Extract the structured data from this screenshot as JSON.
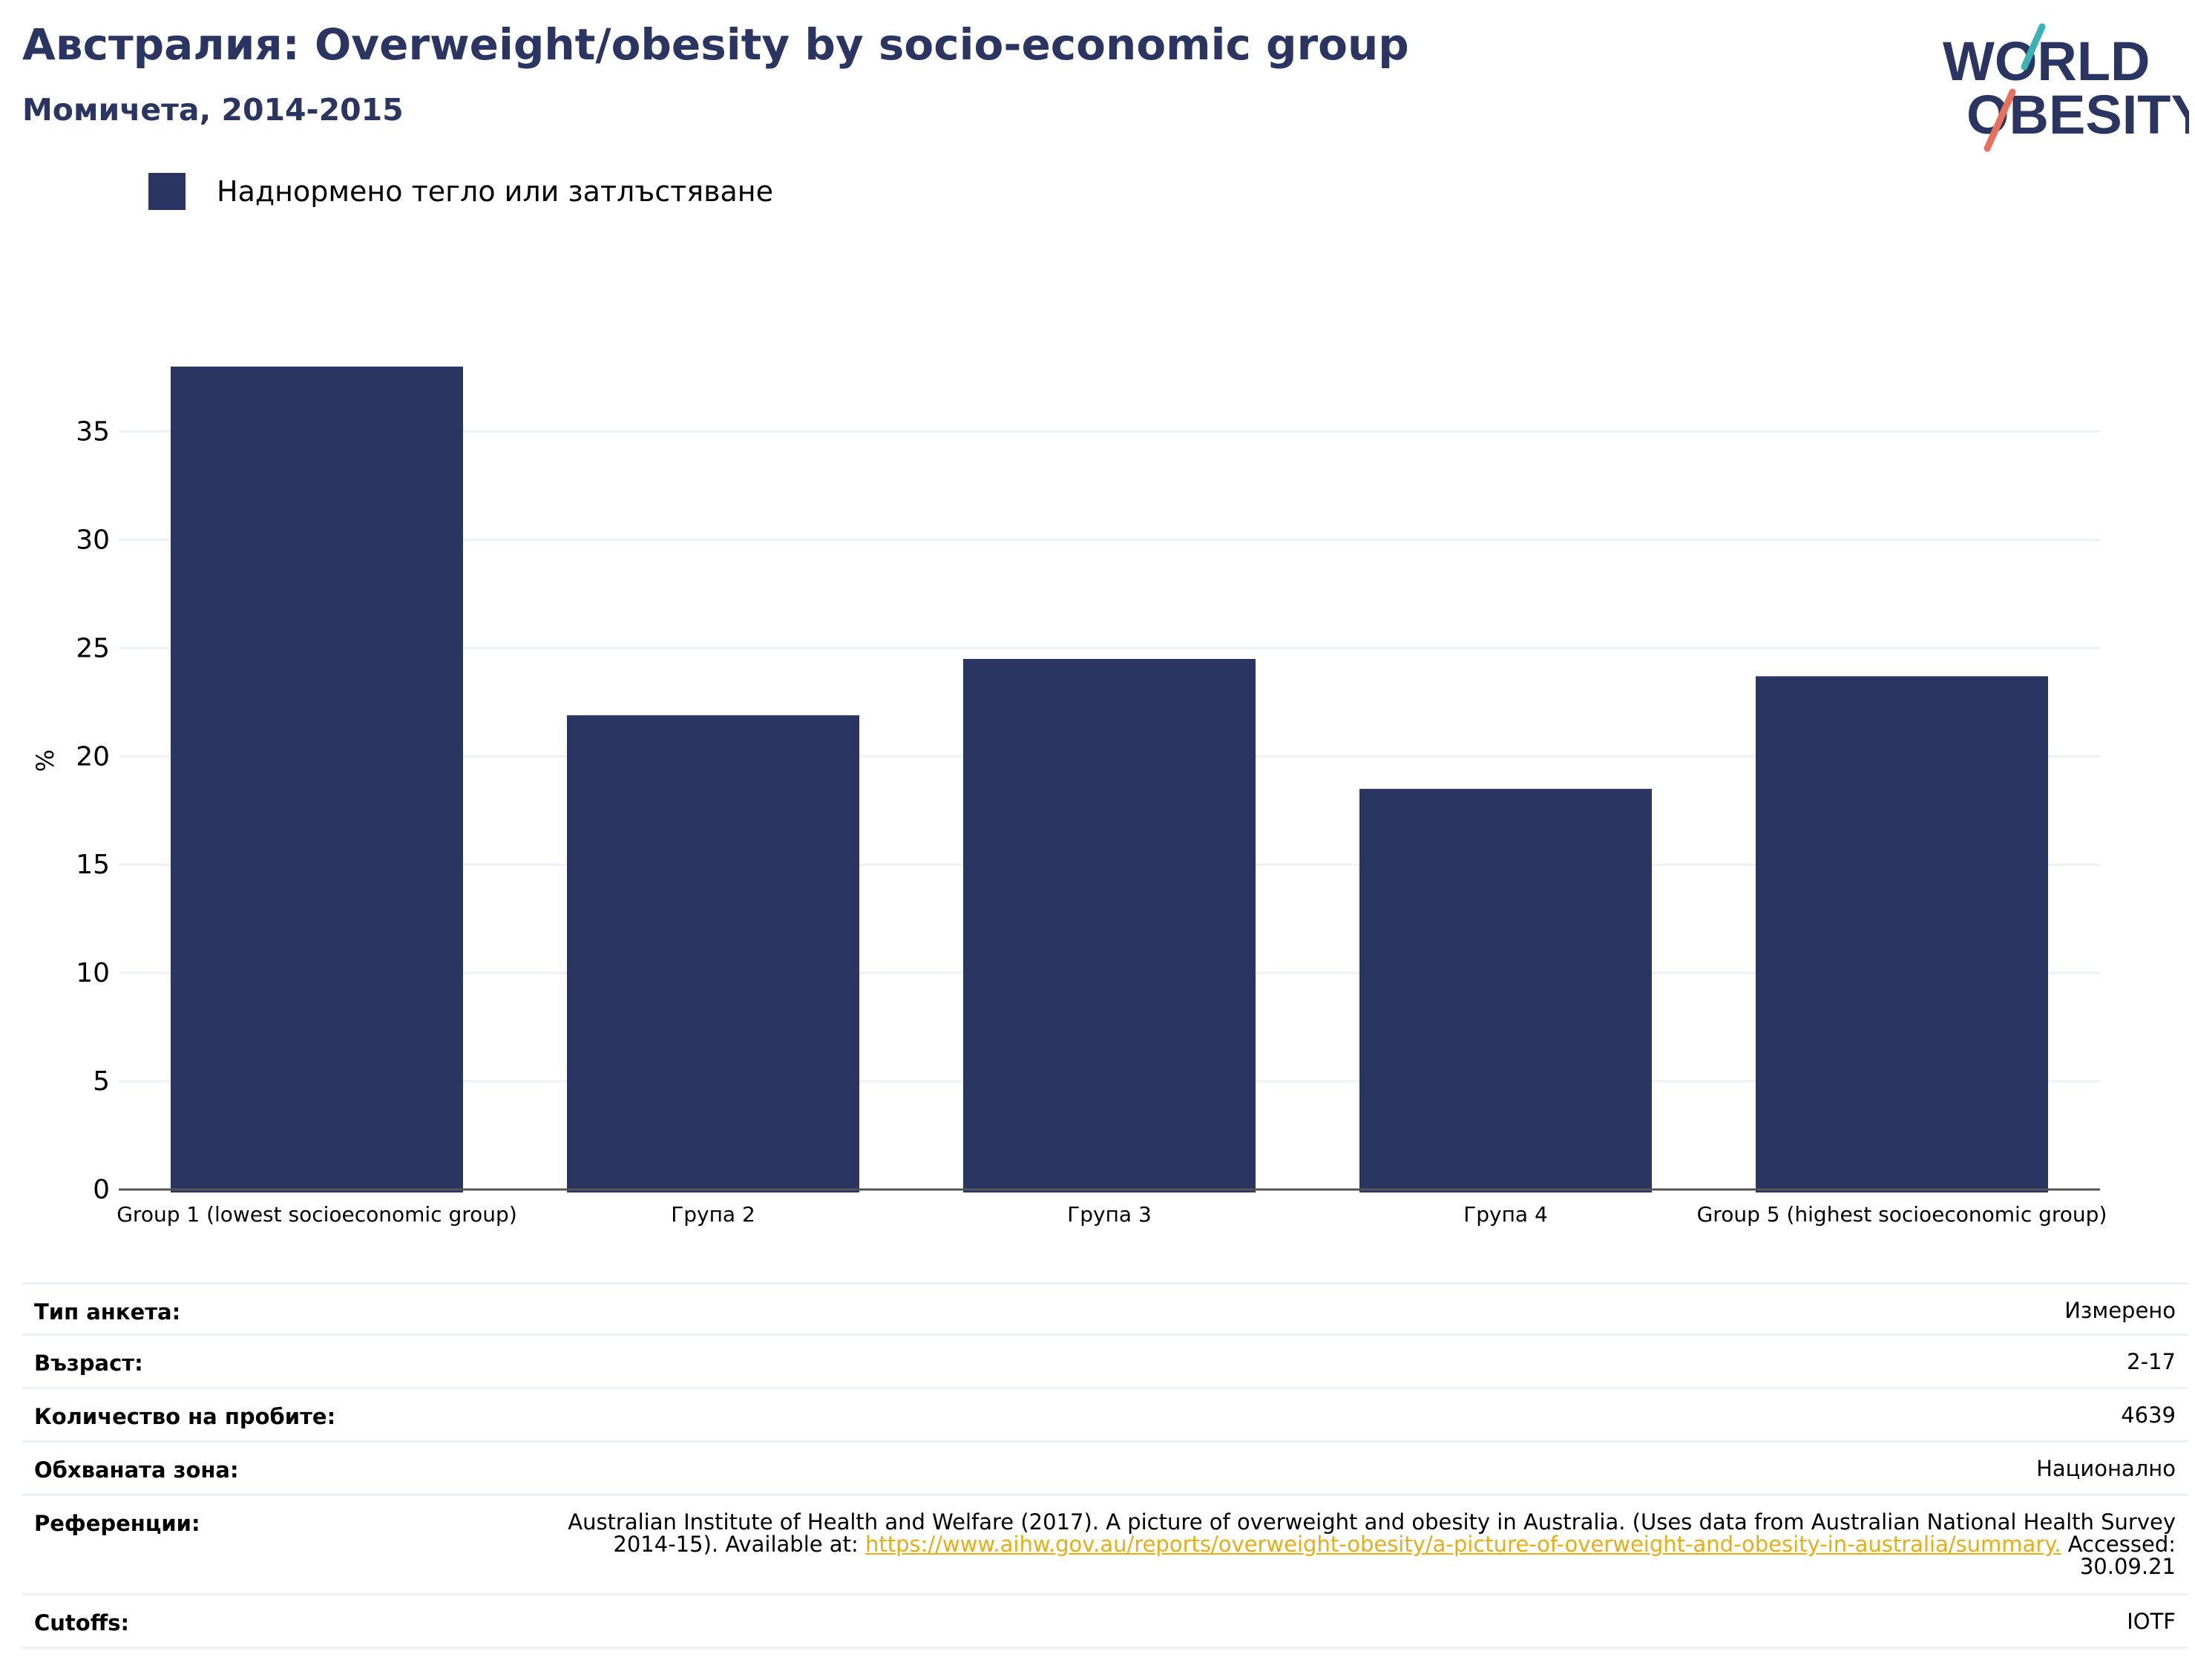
{
  "header": {
    "title": "Австралия: Overweight/obesity by socio-economic group",
    "subtitle": "Момичета, 2014-2015"
  },
  "logo": {
    "line1": "WORLD",
    "line2": "OBESITY"
  },
  "colors": {
    "bar": "#2b3561",
    "accent_teal": "#3bb3b4",
    "accent_coral": "#e8705f",
    "link": "#e6ad15",
    "grid": "#eef0f4"
  },
  "chart_data": {
    "type": "bar",
    "categories": [
      "Group 1 (lowest socioeconomic group)",
      "Група 2",
      "Група 3",
      "Група 4",
      "Group 5 (highest socioeconomic group)"
    ],
    "series": [
      {
        "name": "Наднормено тегло или затлъстяване",
        "values": [
          38.0,
          21.9,
          24.5,
          18.5,
          23.7
        ]
      }
    ],
    "ylabel": "%",
    "xlabel": "",
    "ylim": [
      0,
      38
    ],
    "yticks": [
      0,
      5,
      10,
      15,
      20,
      25,
      30,
      35
    ],
    "grid": true,
    "legend": "top-left"
  },
  "info": {
    "survey_type": {
      "label": "Тип анкета:",
      "value": "Измерено"
    },
    "age": {
      "label": "Възраст:",
      "value": "2-17"
    },
    "sample_size": {
      "label": "Количество на пробите:",
      "value": "4639"
    },
    "area": {
      "label": "Обхваната зона:",
      "value": "Национално"
    },
    "references": {
      "label": "Референции:",
      "text_before": "Australian Institute of Health and Welfare (2017). A picture of overweight and obesity in Australia. (Uses data from Australian National Health Survey 2014-15). Available at: ",
      "link": "https://www.aihw.gov.au/reports/overweight-obesity/a-picture-of-overweight-and-obesity-in-australia/summary.",
      "text_after": " Accessed: 30.09.21"
    },
    "cutoffs": {
      "label": "Cutoffs:",
      "value": "IOTF"
    }
  }
}
